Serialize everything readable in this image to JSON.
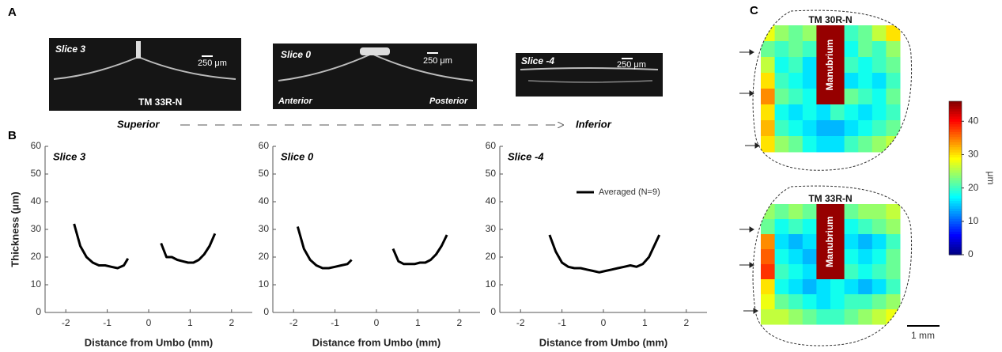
{
  "panel_labels": [
    "A",
    "B",
    "C"
  ],
  "panel_a": {
    "images": [
      {
        "label": "Slice 3",
        "scale": "250 μm",
        "caption": "TM 33R-N"
      },
      {
        "label": "Slice 0",
        "scale": "250 μm",
        "left": "Anterior",
        "right": "Posterior"
      },
      {
        "label": "Slice -4",
        "scale": "250 μm"
      }
    ],
    "direction": {
      "start": "Superior",
      "end": "Inferior"
    }
  },
  "chart_data": [
    {
      "type": "line",
      "title": "Slice 3",
      "x_label": "Distance from Umbo (mm)",
      "y_label": "Thickness (μm)",
      "xlim": [
        -2.5,
        2.5
      ],
      "xticks": [
        -2,
        -1,
        0,
        1,
        2
      ],
      "ylim": [
        0,
        60
      ],
      "yticks": [
        0,
        10,
        20,
        30,
        40,
        50,
        60
      ],
      "x": [
        -1.8,
        -1.65,
        -1.5,
        -1.35,
        -1.2,
        -1.05,
        -0.9,
        -0.75,
        -0.6,
        -0.5,
        null,
        0.3,
        0.43,
        0.56,
        0.69,
        0.82,
        0.95,
        1.08,
        1.21,
        1.34,
        1.47,
        1.6
      ],
      "series": [
        {
          "color": "#000000",
          "values": [
            32,
            24,
            20,
            18,
            17,
            17,
            16.5,
            16,
            17,
            19.5,
            null,
            25,
            20,
            20,
            19,
            18.5,
            18,
            18,
            19,
            21,
            24,
            28.5
          ]
        }
      ]
    },
    {
      "type": "line",
      "title": "Slice 0",
      "x_label": "Distance from Umbo (mm)",
      "xlim": [
        -2.5,
        2.5
      ],
      "xticks": [
        -2,
        -1,
        0,
        1,
        2
      ],
      "ylim": [
        0,
        60
      ],
      "yticks": [
        0,
        10,
        20,
        30,
        40,
        50,
        60
      ],
      "x": [
        -1.9,
        -1.75,
        -1.6,
        -1.45,
        -1.3,
        -1.15,
        -1.0,
        -0.85,
        -0.7,
        -0.6,
        null,
        0.4,
        0.53,
        0.66,
        0.79,
        0.92,
        1.05,
        1.18,
        1.31,
        1.44,
        1.57,
        1.7
      ],
      "series": [
        {
          "color": "#000000",
          "values": [
            31,
            23,
            19,
            17,
            16,
            16,
            16.5,
            17,
            17.5,
            19,
            null,
            23,
            18.5,
            17.5,
            17.5,
            17.5,
            18,
            18,
            19,
            21,
            24,
            28
          ]
        }
      ]
    },
    {
      "type": "line",
      "title": "Slice -4",
      "x_label": "Distance from Umbo (mm)",
      "legend": "upper right",
      "xlim": [
        -2.5,
        2.5
      ],
      "xticks": [
        -2,
        -1,
        0,
        1,
        2
      ],
      "ylim": [
        0,
        60
      ],
      "yticks": [
        0,
        10,
        20,
        30,
        40,
        50,
        60
      ],
      "x": [
        -1.3,
        -1.15,
        -1.0,
        -0.85,
        -0.7,
        -0.55,
        -0.4,
        -0.25,
        -0.1,
        0.05,
        0.2,
        0.35,
        0.5,
        0.65,
        0.8,
        0.95,
        1.1,
        1.35
      ],
      "series": [
        {
          "name": "Averaged (N=9)",
          "color": "#000000",
          "values": [
            28,
            22,
            18,
            16.5,
            16,
            16,
            15.5,
            15,
            14.5,
            15,
            15.5,
            16,
            16.5,
            17,
            16.5,
            17.5,
            20,
            28
          ]
        }
      ]
    },
    {
      "type": "heatmap",
      "title": "TM 30R-N",
      "annotation": "Manubrium",
      "values": [
        [
          28,
          24,
          22,
          24,
          45,
          45,
          20,
          22,
          26,
          30
        ],
        [
          22,
          20,
          22,
          20,
          45,
          45,
          18,
          22,
          20,
          24
        ],
        [
          26,
          18,
          20,
          16,
          45,
          45,
          20,
          18,
          20,
          22
        ],
        [
          30,
          20,
          18,
          16,
          45,
          45,
          16,
          18,
          16,
          20
        ],
        [
          34,
          22,
          20,
          18,
          45,
          45,
          22,
          20,
          18,
          22
        ],
        [
          30,
          18,
          16,
          18,
          16,
          20,
          18,
          16,
          18,
          20
        ],
        [
          32,
          20,
          18,
          16,
          14,
          14,
          16,
          18,
          20,
          22
        ],
        [
          30,
          24,
          22,
          18,
          16,
          16,
          20,
          22,
          24,
          26
        ]
      ]
    },
    {
      "type": "heatmap",
      "title": "TM 33R-N",
      "annotation": "Manubrium",
      "values": [
        [
          24,
          22,
          24,
          22,
          45,
          45,
          22,
          24,
          24,
          26
        ],
        [
          22,
          18,
          20,
          18,
          45,
          45,
          18,
          20,
          22,
          24
        ],
        [
          34,
          16,
          14,
          16,
          45,
          45,
          16,
          14,
          16,
          20
        ],
        [
          36,
          18,
          16,
          14,
          45,
          45,
          18,
          16,
          18,
          22
        ],
        [
          38,
          20,
          18,
          16,
          45,
          45,
          20,
          18,
          20,
          22
        ],
        [
          30,
          18,
          16,
          14,
          16,
          18,
          16,
          14,
          16,
          20
        ],
        [
          28,
          22,
          20,
          18,
          16,
          18,
          20,
          20,
          22,
          24
        ],
        [
          26,
          26,
          24,
          22,
          20,
          20,
          22,
          24,
          26,
          28
        ]
      ]
    }
  ],
  "colorbar": {
    "colormap": "jet",
    "lim": [
      0,
      46
    ],
    "ticks": [
      0,
      10,
      20,
      30,
      40
    ],
    "label": "μm"
  },
  "scale_bar": "1 mm"
}
